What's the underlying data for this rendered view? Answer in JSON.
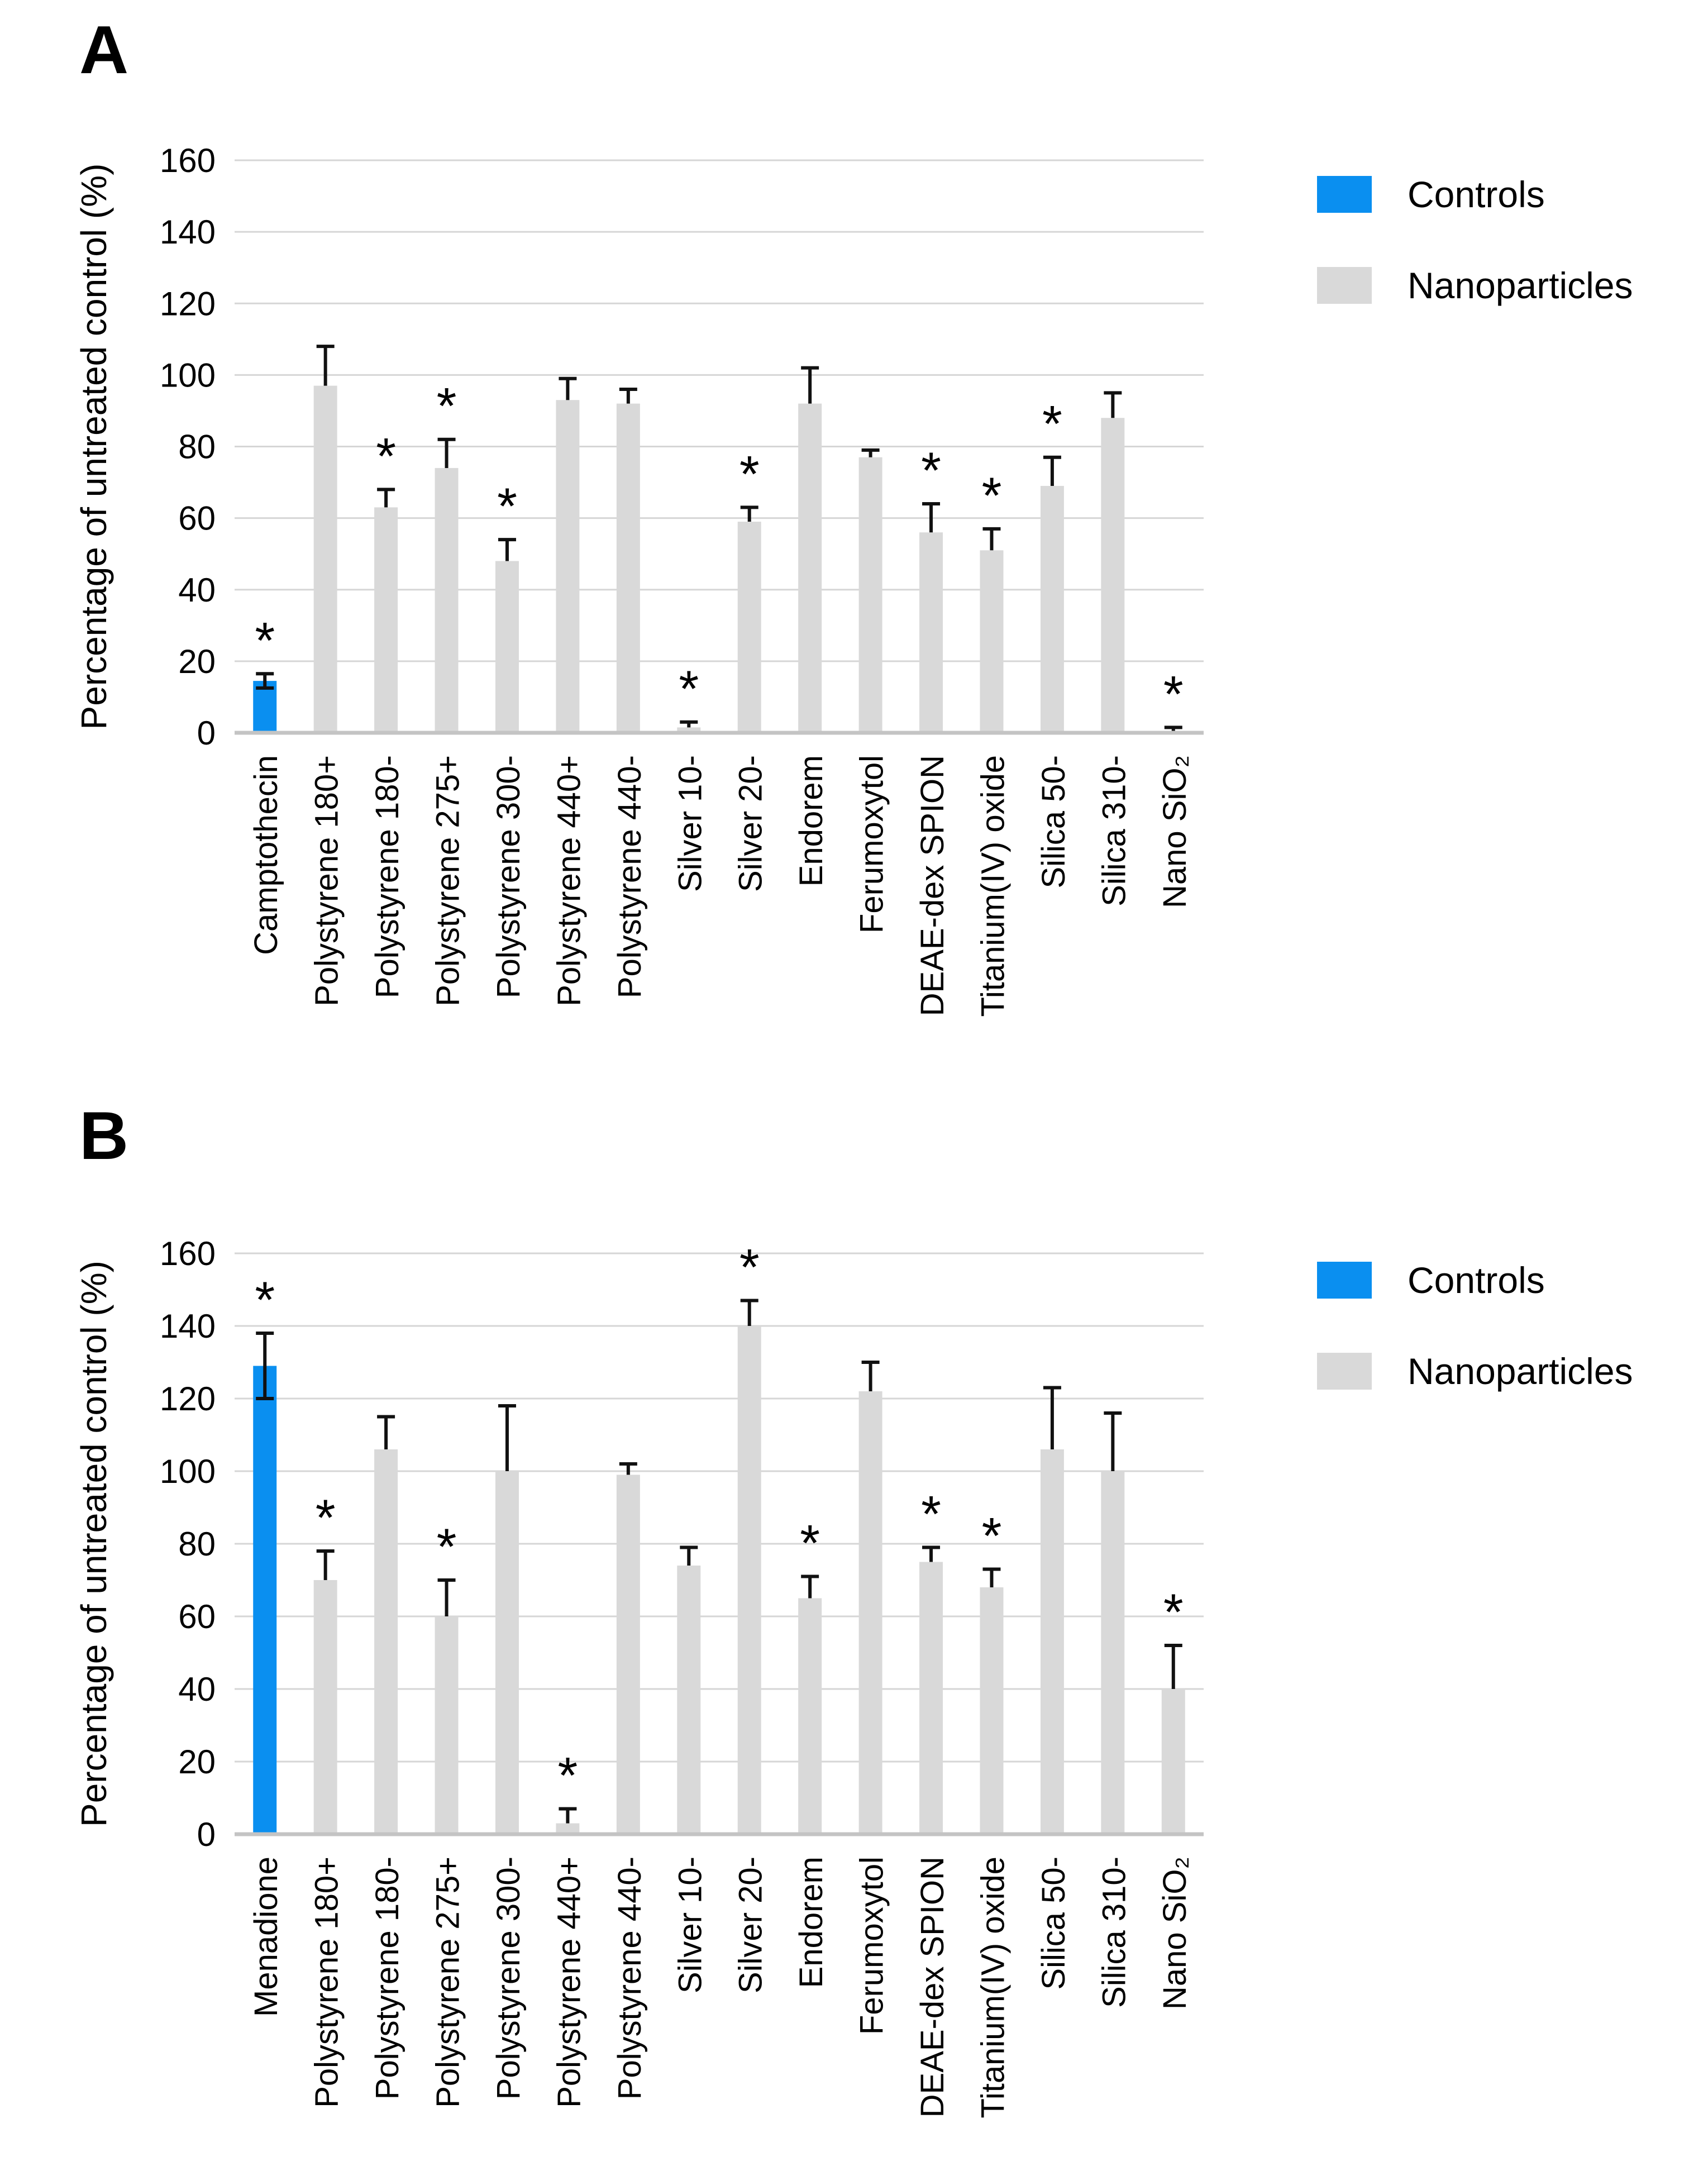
{
  "chart_data": [
    {
      "type": "bar",
      "panel": "A",
      "title": "",
      "xlabel": "",
      "ylabel": "Percentage of untreated control (%)",
      "ylim": [
        0,
        160
      ],
      "y_ticks": [
        0,
        20,
        40,
        60,
        80,
        100,
        120,
        140,
        160
      ],
      "grid": true,
      "legend_position": "top-right",
      "legend": [
        {
          "name": "Controls",
          "color": "#0a8ff0"
        },
        {
          "name": "Nanoparticles",
          "color": "#d9d9d9"
        }
      ],
      "colors": {
        "control": "#0a8ff0",
        "nanoparticle": "#d9d9d9"
      },
      "style": {
        "grid_color": "#d6d6d6",
        "axis_color": "#c4c4c4",
        "error_color": "#111111"
      },
      "control_indices": [
        0
      ],
      "categories": [
        "Camptothecin",
        "Polystyrene 180+",
        "Polystyrene 180-",
        "Polystyrene 275+",
        "Polystyrene 300-",
        "Polystyrene 440+",
        "Polystyrene 440-",
        "Silver 10-",
        "Silver 20-",
        "Endorem",
        "Ferumoxytol",
        "DEAE-dex SPION",
        "Titanium(IV) oxide",
        "Silica 50-",
        "Silica 310-",
        "Nano SiO₂"
      ],
      "values": [
        14.5,
        97,
        63,
        74,
        48,
        93,
        92,
        1.5,
        59,
        92,
        77,
        56,
        51,
        69,
        88,
        0.5
      ],
      "errors": [
        2,
        11,
        5,
        8,
        6,
        6,
        4,
        1.5,
        4,
        10,
        2,
        8,
        6,
        8,
        7,
        1
      ],
      "significant": [
        true,
        false,
        true,
        true,
        true,
        false,
        false,
        true,
        true,
        false,
        false,
        true,
        true,
        true,
        false,
        true
      ],
      "significance_marker": "*"
    },
    {
      "type": "bar",
      "panel": "B",
      "title": "",
      "xlabel": "",
      "ylabel": "Percentage of untreated control (%)",
      "ylim": [
        0,
        160
      ],
      "y_ticks": [
        0,
        20,
        40,
        60,
        80,
        100,
        120,
        140,
        160
      ],
      "grid": true,
      "legend_position": "top-right",
      "legend": [
        {
          "name": "Controls",
          "color": "#0a8ff0"
        },
        {
          "name": "Nanoparticles",
          "color": "#d9d9d9"
        }
      ],
      "colors": {
        "control": "#0a8ff0",
        "nanoparticle": "#d9d9d9"
      },
      "style": {
        "grid_color": "#d6d6d6",
        "axis_color": "#c4c4c4",
        "error_color": "#111111"
      },
      "control_indices": [
        0
      ],
      "categories": [
        "Menadione",
        "Polystyrene 180+",
        "Polystyrene 180-",
        "Polystyrene 275+",
        "Polystyrene 300-",
        "Polystyrene 440+",
        "Polystyrene 440-",
        "Silver 10-",
        "Silver 20-",
        "Endorem",
        "Ferumoxytol",
        "DEAE-dex SPION",
        "Titanium(IV) oxide",
        "Silica 50-",
        "Silica 310-",
        "Nano SiO₂"
      ],
      "values": [
        129,
        70,
        106,
        60,
        100,
        3,
        99,
        74,
        140,
        65,
        122,
        75,
        68,
        106,
        100,
        40
      ],
      "errors": [
        9,
        8,
        9,
        10,
        18,
        4,
        3,
        5,
        7,
        6,
        8,
        4,
        5,
        17,
        16,
        12
      ],
      "significant": [
        true,
        true,
        false,
        true,
        false,
        true,
        false,
        false,
        true,
        true,
        false,
        true,
        true,
        false,
        false,
        true
      ],
      "significance_marker": "*"
    }
  ]
}
